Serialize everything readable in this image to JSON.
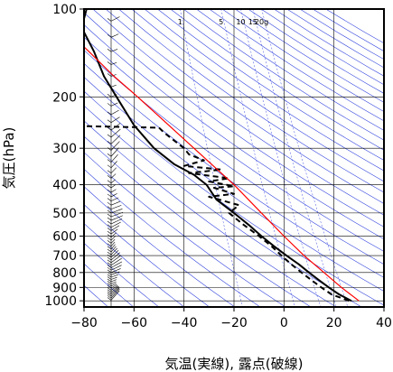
{
  "chart_data": {
    "type": "line",
    "subtype": "emagram",
    "xlabel": "気温(実線), 露点(破線)",
    "ylabel": "気圧(hPa)",
    "xlim": [
      -80,
      40
    ],
    "ylim": [
      1050,
      100
    ],
    "y_scale": "log",
    "x_ticks": [
      -80,
      -60,
      -40,
      -20,
      0,
      20,
      40
    ],
    "x_tick_labels": [
      "−80",
      "−60",
      "−40",
      "−20",
      "0",
      "20",
      "40"
    ],
    "y_ticks": [
      1000,
      900,
      800,
      700,
      600,
      500,
      400,
      300,
      200,
      100
    ],
    "y_tick_labels": [
      "1000",
      "900",
      "800",
      "700",
      "600",
      "500",
      "400",
      "300",
      "200",
      "100"
    ],
    "grid": true,
    "mixing_ratio_labels": [
      "1",
      "5",
      "10",
      "15",
      "20g"
    ],
    "mixing_ratio_values": [
      1,
      5,
      10,
      15,
      20
    ],
    "colors": {
      "temperature": "#000000",
      "dewpoint": "#000000",
      "reference_curve": "#ff0000",
      "isopleths": "#3344dd",
      "grid": "#000000",
      "wind_barbs": "#000000"
    },
    "series": [
      {
        "name": "気温",
        "style": "solid",
        "points": [
          [
            27,
            1000
          ],
          [
            22,
            950
          ],
          [
            18,
            900
          ],
          [
            14,
            850
          ],
          [
            10,
            800
          ],
          [
            6,
            750
          ],
          [
            1,
            700
          ],
          [
            -4,
            650
          ],
          [
            -9,
            600
          ],
          [
            -14,
            550
          ],
          [
            -20,
            500
          ],
          [
            -27,
            450
          ],
          [
            -31,
            400
          ],
          [
            -36,
            370
          ],
          [
            -44,
            340
          ],
          [
            -52,
            300
          ],
          [
            -60,
            250
          ],
          [
            -67,
            200
          ],
          [
            -72,
            170
          ],
          [
            -76,
            140
          ],
          [
            -80,
            120
          ],
          [
            -80,
            108
          ],
          [
            -79,
            100
          ]
        ]
      },
      {
        "name": "露点",
        "style": "dashed",
        "points": [
          [
            26,
            1000
          ],
          [
            19,
            950
          ],
          [
            15,
            900
          ],
          [
            11,
            850
          ],
          [
            7,
            800
          ],
          [
            3,
            750
          ],
          [
            -1,
            700
          ],
          [
            -5,
            650
          ],
          [
            -10,
            600
          ],
          [
            -16,
            550
          ],
          [
            -22,
            500
          ],
          [
            -18,
            470
          ],
          [
            -30,
            440
          ],
          [
            -20,
            430
          ],
          [
            -28,
            410
          ],
          [
            -20,
            405
          ],
          [
            -30,
            390
          ],
          [
            -22,
            380
          ],
          [
            -38,
            365
          ],
          [
            -25,
            355
          ],
          [
            -40,
            345
          ],
          [
            -32,
            330
          ],
          [
            -38,
            315
          ],
          [
            -40,
            300
          ],
          [
            -48,
            265
          ],
          [
            -50,
            255
          ],
          [
            -80,
            252
          ]
        ]
      },
      {
        "name": "",
        "style": "solid",
        "points": [
          [
            30,
            1000
          ],
          [
            23,
            900
          ],
          [
            16,
            800
          ],
          [
            8,
            700
          ],
          [
            0,
            600
          ],
          [
            -9,
            500
          ],
          [
            -20,
            400
          ],
          [
            -36,
            300
          ],
          [
            -52,
            225
          ],
          [
            -60,
            195
          ],
          [
            -68,
            170
          ],
          [
            -78,
            140
          ],
          [
            -84,
            125
          ]
        ]
      }
    ],
    "wind_profile_levels": [
      1000,
      900,
      800,
      700,
      600,
      500,
      400,
      300,
      250,
      200,
      150,
      100
    ]
  }
}
